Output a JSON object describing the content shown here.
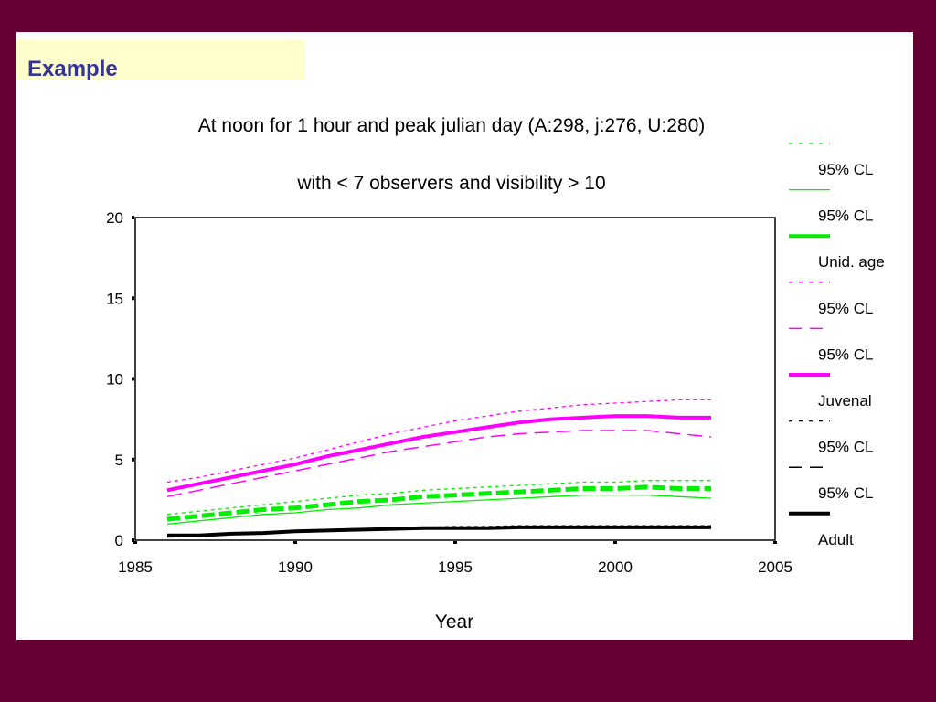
{
  "slide": {
    "title": "Example"
  },
  "colors": {
    "background": "#660033",
    "title_box": "#ffffcc",
    "title_text": "#333399",
    "unid": "#00ee00",
    "juvenal": "#ff00ff",
    "adult": "#000000"
  },
  "chart_data": {
    "type": "line",
    "title": "At noon for 1 hour and peak julian day (A:298, j:276, U:280)",
    "subtitle": "with < 7 observers and visibility > 10",
    "xlabel": "Year",
    "ylabel": "",
    "xlim": [
      1985,
      2005
    ],
    "ylim": [
      0,
      20
    ],
    "xticks": [
      1985,
      1990,
      1995,
      2000,
      2005
    ],
    "yticks": [
      0,
      5,
      10,
      15,
      20
    ],
    "grid": false,
    "legend_position": "right",
    "x": [
      1986,
      1987,
      1988,
      1989,
      1990,
      1991,
      1992,
      1993,
      1994,
      1995,
      1996,
      1997,
      1998,
      1999,
      2000,
      2001,
      2002,
      2003
    ],
    "series": [
      {
        "name": "95% CL",
        "group": "unid",
        "style": "dotted",
        "color": "#00ee00",
        "values": [
          1.6,
          1.8,
          2.0,
          2.2,
          2.4,
          2.6,
          2.8,
          2.9,
          3.1,
          3.2,
          3.3,
          3.4,
          3.5,
          3.6,
          3.6,
          3.7,
          3.7,
          3.7
        ]
      },
      {
        "name": "95% CL",
        "group": "unid",
        "style": "thin",
        "color": "#00ee00",
        "values": [
          1.0,
          1.2,
          1.4,
          1.6,
          1.7,
          1.9,
          2.0,
          2.2,
          2.3,
          2.4,
          2.5,
          2.6,
          2.7,
          2.8,
          2.8,
          2.8,
          2.7,
          2.6
        ]
      },
      {
        "name": "Unid. age",
        "group": "unid",
        "style": "thick-dashed",
        "color": "#00ee00",
        "values": [
          1.3,
          1.5,
          1.7,
          1.9,
          2.0,
          2.2,
          2.4,
          2.5,
          2.7,
          2.8,
          2.9,
          3.0,
          3.1,
          3.2,
          3.2,
          3.3,
          3.2,
          3.2
        ]
      },
      {
        "name": "95% CL",
        "group": "juvenal",
        "style": "dotted",
        "color": "#ff00ff",
        "values": [
          3.6,
          3.9,
          4.3,
          4.7,
          5.1,
          5.6,
          6.1,
          6.6,
          7.0,
          7.4,
          7.7,
          8.0,
          8.2,
          8.4,
          8.5,
          8.6,
          8.7,
          8.7
        ]
      },
      {
        "name": "95% CL",
        "group": "juvenal",
        "style": "dashed",
        "color": "#ff00ff",
        "values": [
          2.7,
          3.1,
          3.5,
          3.9,
          4.3,
          4.7,
          5.1,
          5.5,
          5.8,
          6.1,
          6.4,
          6.6,
          6.7,
          6.8,
          6.8,
          6.8,
          6.6,
          6.4
        ]
      },
      {
        "name": "Juvenal",
        "group": "juvenal",
        "style": "thick",
        "color": "#ff00ff",
        "values": [
          3.1,
          3.5,
          3.9,
          4.3,
          4.7,
          5.2,
          5.6,
          6.0,
          6.4,
          6.7,
          7.0,
          7.3,
          7.5,
          7.6,
          7.7,
          7.7,
          7.6,
          7.6
        ]
      },
      {
        "name": "95% CL",
        "group": "adult",
        "style": "dotted",
        "color": "#000000",
        "values": [
          0.3,
          0.35,
          0.45,
          0.5,
          0.6,
          0.65,
          0.7,
          0.75,
          0.8,
          0.85,
          0.85,
          0.9,
          0.9,
          0.9,
          0.9,
          0.9,
          0.9,
          0.9
        ]
      },
      {
        "name": "95% CL",
        "group": "adult",
        "style": "dashed",
        "color": "#000000",
        "values": [
          0.2,
          0.25,
          0.35,
          0.4,
          0.5,
          0.55,
          0.6,
          0.65,
          0.7,
          0.75,
          0.75,
          0.8,
          0.8,
          0.8,
          0.8,
          0.8,
          0.8,
          0.8
        ]
      },
      {
        "name": "Adult",
        "group": "adult",
        "style": "thick",
        "color": "#000000",
        "values": [
          0.3,
          0.3,
          0.4,
          0.45,
          0.55,
          0.6,
          0.65,
          0.7,
          0.75,
          0.75,
          0.75,
          0.8,
          0.8,
          0.8,
          0.8,
          0.8,
          0.8,
          0.8
        ]
      }
    ],
    "legend": [
      {
        "label": "95% CL",
        "style": "dotted",
        "color": "#00ee00"
      },
      {
        "label": "95% CL",
        "style": "thin",
        "color": "#00ee00"
      },
      {
        "label": "Unid. age",
        "style": "thick",
        "color": "#00ee00"
      },
      {
        "label": "95% CL",
        "style": "dotted",
        "color": "#ff00ff"
      },
      {
        "label": "95% CL",
        "style": "dashed",
        "color": "#ff00ff"
      },
      {
        "label": "Juvenal",
        "style": "thick",
        "color": "#ff00ff"
      },
      {
        "label": "95% CL",
        "style": "dotted",
        "color": "#000000"
      },
      {
        "label": "95% CL",
        "style": "dashed",
        "color": "#000000"
      },
      {
        "label": "Adult",
        "style": "thick",
        "color": "#000000"
      }
    ]
  }
}
